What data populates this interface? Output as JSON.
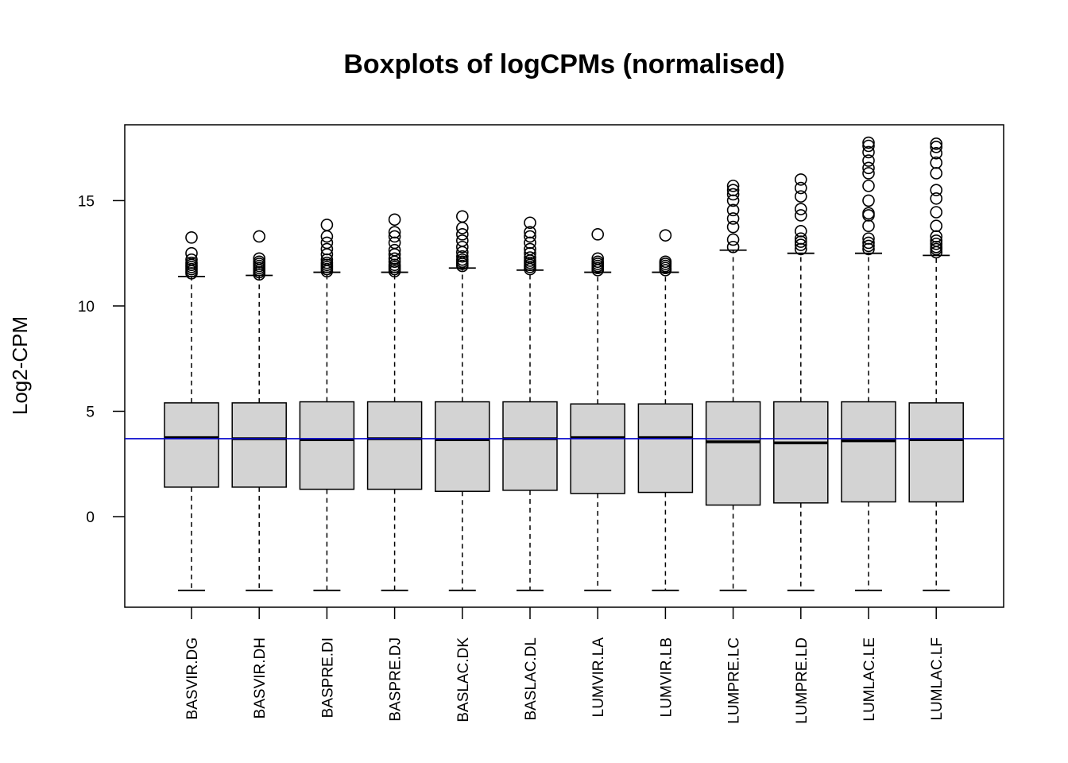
{
  "chart_data": {
    "type": "boxplot",
    "title": "Boxplots of logCPMs (normalised)",
    "xlabel": "",
    "ylabel": "Log2-CPM",
    "ylim": [
      -4.3,
      18.6
    ],
    "yticks": [
      0,
      5,
      10,
      15
    ],
    "reference_line": {
      "y": 3.7,
      "color": "#0000cc"
    },
    "colors": {
      "box_fill": "#d3d3d3",
      "stroke": "#000000"
    },
    "categories": [
      "BASVIR.DG",
      "BASVIR.DH",
      "BASPRE.DI",
      "BASPRE.DJ",
      "BASLAC.DK",
      "BASLAC.DL",
      "LUMVIR.LA",
      "LUMVIR.LB",
      "LUMPRE.LC",
      "LUMPRE.LD",
      "LUMLAC.LE",
      "LUMLAC.LF"
    ],
    "boxes": [
      {
        "min": -3.5,
        "q1": 1.4,
        "median": 3.75,
        "q3": 5.4,
        "max": 11.4,
        "outliers": [
          11.55,
          11.65,
          11.75,
          11.85,
          11.95,
          12.05,
          12.2,
          12.5,
          13.25
        ]
      },
      {
        "min": -3.5,
        "q1": 1.4,
        "median": 3.7,
        "q3": 5.4,
        "max": 11.45,
        "outliers": [
          11.5,
          11.6,
          11.7,
          11.8,
          11.9,
          12.0,
          12.1,
          12.25,
          13.3
        ]
      },
      {
        "min": -3.5,
        "q1": 1.3,
        "median": 3.65,
        "q3": 5.45,
        "max": 11.6,
        "outliers": [
          11.65,
          11.75,
          11.85,
          11.95,
          12.05,
          12.2,
          12.45,
          12.7,
          13.0,
          13.3,
          13.85
        ]
      },
      {
        "min": -3.5,
        "q1": 1.3,
        "median": 3.7,
        "q3": 5.45,
        "max": 11.6,
        "outliers": [
          11.65,
          11.75,
          11.85,
          11.95,
          12.1,
          12.25,
          12.45,
          12.65,
          13.0,
          13.3,
          13.5,
          14.1
        ]
      },
      {
        "min": -3.5,
        "q1": 1.2,
        "median": 3.65,
        "q3": 5.45,
        "max": 11.8,
        "outliers": [
          11.9,
          12.0,
          12.1,
          12.2,
          12.35,
          12.55,
          12.8,
          13.1,
          13.4,
          13.7,
          14.25
        ]
      },
      {
        "min": -3.5,
        "q1": 1.25,
        "median": 3.7,
        "q3": 5.45,
        "max": 11.7,
        "outliers": [
          11.75,
          11.85,
          11.95,
          12.05,
          12.15,
          12.3,
          12.5,
          12.7,
          13.0,
          13.3,
          13.5,
          13.95
        ]
      },
      {
        "min": -3.5,
        "q1": 1.1,
        "median": 3.75,
        "q3": 5.35,
        "max": 11.6,
        "outliers": [
          11.7,
          11.8,
          11.9,
          12.0,
          12.1,
          12.25,
          13.4
        ]
      },
      {
        "min": -3.5,
        "q1": 1.15,
        "median": 3.75,
        "q3": 5.35,
        "max": 11.6,
        "outliers": [
          11.7,
          11.8,
          11.9,
          12.0,
          12.1,
          13.35
        ]
      },
      {
        "min": -3.5,
        "q1": 0.55,
        "median": 3.55,
        "q3": 5.45,
        "max": 12.65,
        "outliers": [
          12.8,
          13.15,
          13.75,
          14.15,
          14.55,
          15.0,
          15.3,
          15.5,
          15.7
        ]
      },
      {
        "min": -3.5,
        "q1": 0.65,
        "median": 3.5,
        "q3": 5.45,
        "max": 12.5,
        "outliers": [
          12.7,
          12.9,
          13.05,
          13.2,
          13.55,
          14.3,
          14.6,
          15.2,
          15.6,
          16.0
        ]
      },
      {
        "min": -3.5,
        "q1": 0.7,
        "median": 3.6,
        "q3": 5.45,
        "max": 12.5,
        "outliers": [
          12.7,
          12.85,
          13.0,
          13.2,
          13.8,
          14.3,
          14.4,
          15.0,
          15.7,
          16.3,
          16.55,
          16.9,
          17.3,
          17.6,
          17.75
        ]
      },
      {
        "min": -3.5,
        "q1": 0.7,
        "median": 3.65,
        "q3": 5.4,
        "max": 12.4,
        "outliers": [
          12.55,
          12.7,
          12.8,
          12.95,
          13.1,
          13.3,
          13.8,
          14.45,
          15.1,
          15.5,
          16.3,
          16.8,
          17.25,
          17.55,
          17.7
        ]
      }
    ]
  }
}
